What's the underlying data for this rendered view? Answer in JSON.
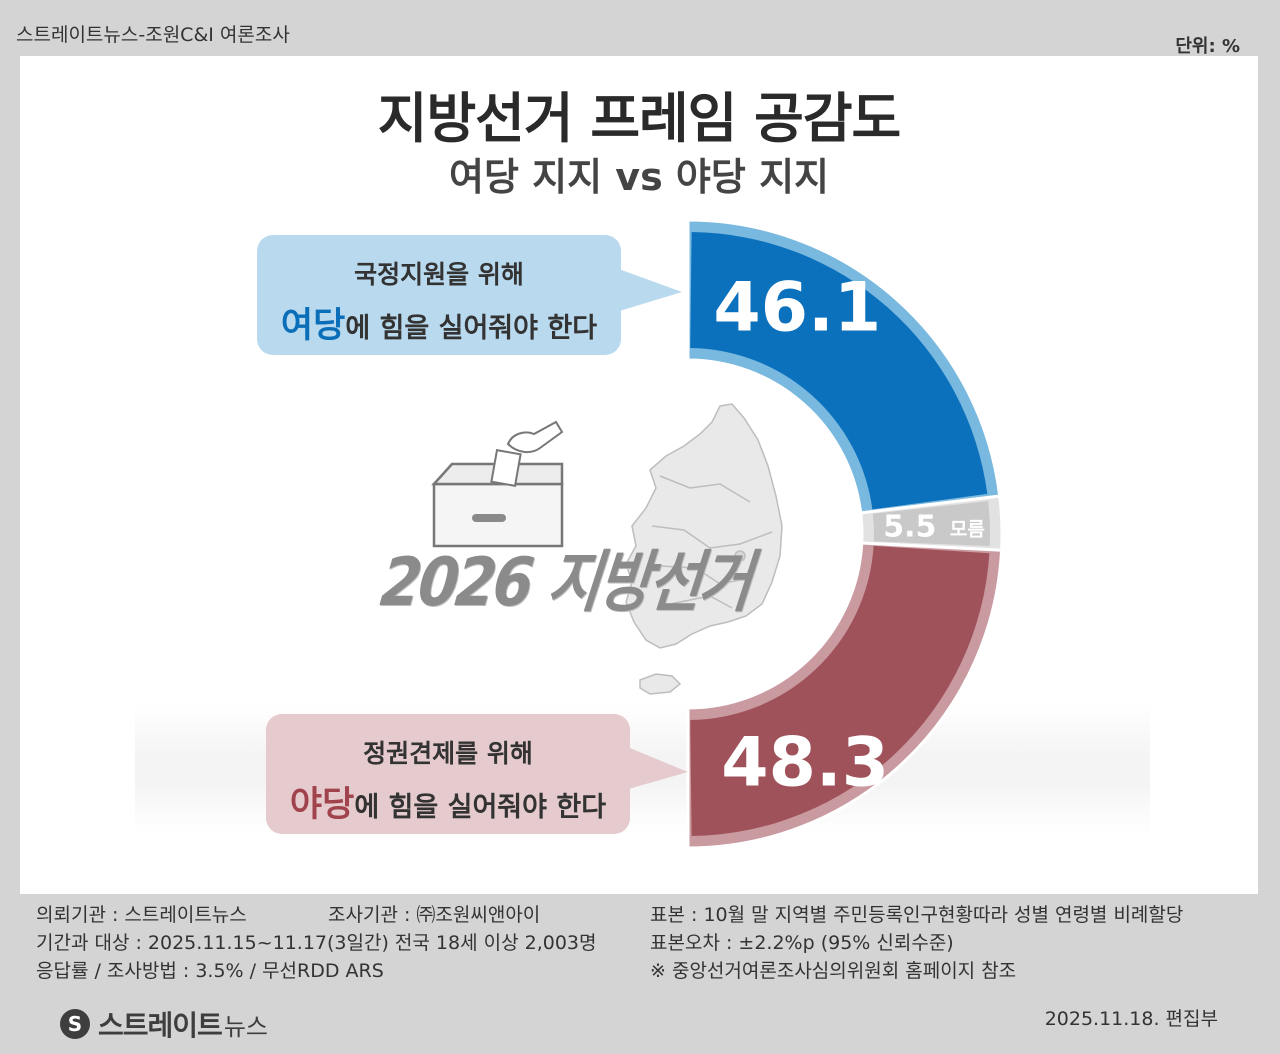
{
  "header": {
    "source": "스트레이트뉴스-조원C&I 여론조사",
    "unit": "단위: %"
  },
  "title": "지방선거 프레임 공감도",
  "subtitle": "여당 지지 vs 야당 지지",
  "bubbles": {
    "government": {
      "line1": "국정지원을 위해",
      "accent": "여당",
      "rest": "에 힘을 실어줘야 한다"
    },
    "opposition": {
      "line1": "정권견제를 위해",
      "accent": "야당",
      "rest": "에 힘을 실어줘야 한다"
    }
  },
  "illustration": {
    "ballot_label": "2026 지방선거"
  },
  "chart_data": {
    "type": "pie",
    "variant": "half-donut",
    "unit": "%",
    "slices": [
      {
        "label": "",
        "value": 46.1,
        "display": "46.1",
        "color": "#0c71bc",
        "border": "#79b8df"
      },
      {
        "label": "모름",
        "value": 5.5,
        "display": "5.5",
        "color": "#c9c9c9",
        "border": "#e2e2e2"
      },
      {
        "label": "",
        "value": 48.3,
        "display": "48.3",
        "color": "#a0525b",
        "border": "#c99aa0"
      }
    ]
  },
  "footer": {
    "client": "의뢰기관 : 스트레이트뉴스",
    "agency": "조사기관 : ㈜조원씨앤아이",
    "period": "기간과 대상 : 2025.11.15~11.17(3일간)   전국 18세 이상  2,003명",
    "response": "응답률 / 조사방법 : 3.5% / 무선RDD ARS",
    "sample": "표본 : 10월 말 지역별 주민등록인구현황따라 성별 연령별 비례할당",
    "error": "표본오차 : ±2.2%p (95% 신뢰수준)",
    "note": "※ 중앙선거여론조사심의위원회 홈페이지 참조",
    "date": "2025.11.18. 편집부"
  },
  "logo": {
    "mark": "S",
    "name": "스트레이트",
    "sub": "뉴스"
  }
}
